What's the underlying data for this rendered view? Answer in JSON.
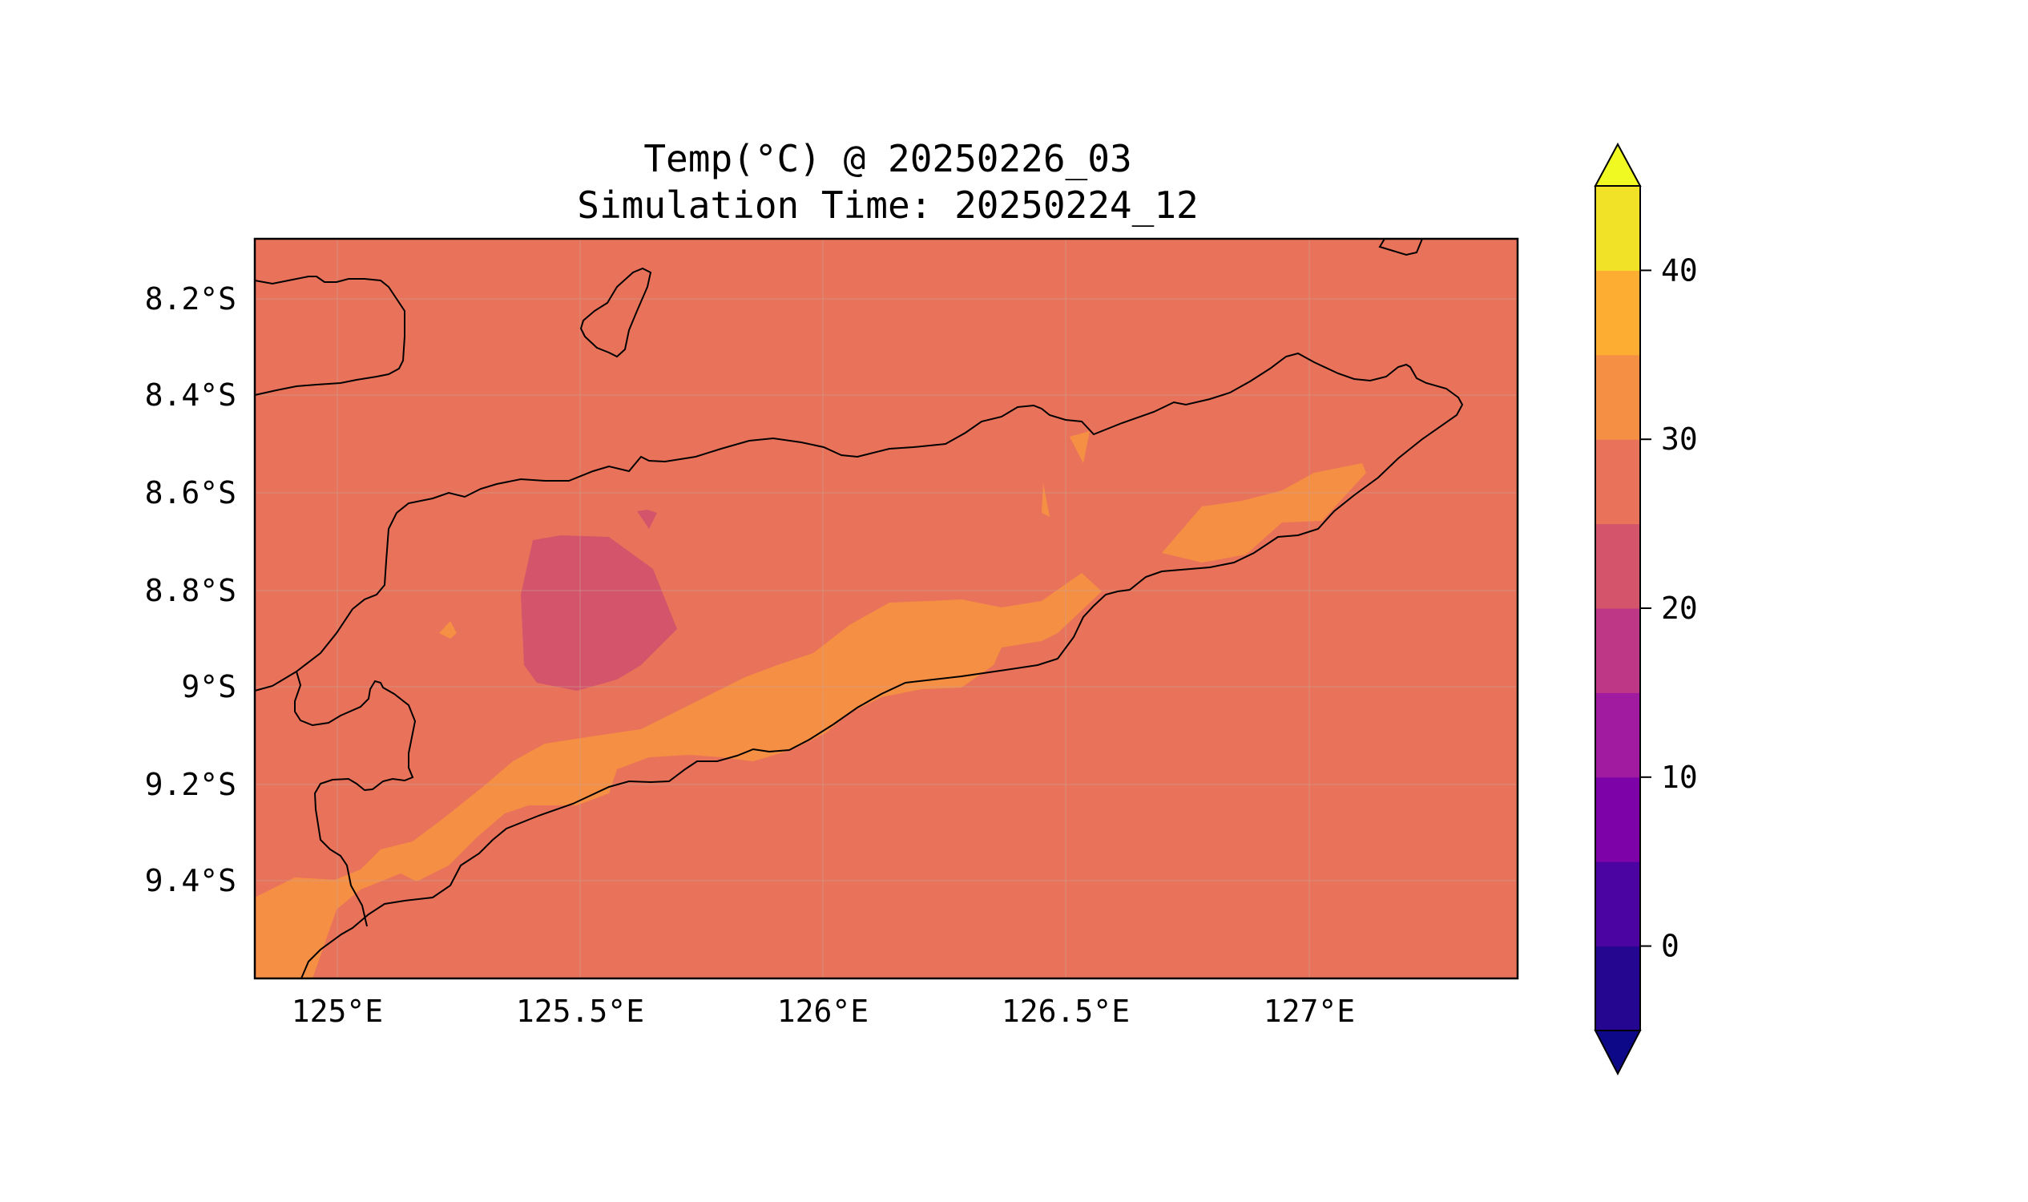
{
  "title_line1": "Temp(°C) @ 20250226_03",
  "title_line2": "Simulation Time: 20250224_12",
  "map": {
    "lon_range": [
      124.83,
      127.42
    ],
    "lat_range": [
      -9.6,
      -8.08
    ],
    "lon_ticks": [
      "125°E",
      "125.5°E",
      "126°E",
      "126.5°E",
      "127°E"
    ],
    "lat_ticks": [
      "8.2°S",
      "8.4°S",
      "8.6°S",
      "8.8°S",
      "9°S",
      "9.2°S",
      "9.4°S"
    ],
    "background_fill_color": "#e9735a",
    "zones": [
      {
        "range": "30-35",
        "color": "#f58f44"
      },
      {
        "range": "20-25",
        "color": "#d4546b"
      }
    ]
  },
  "colorbar": {
    "min": -5,
    "max": 45,
    "step": 5,
    "extend": "both",
    "tick_labels": [
      "0",
      "10",
      "20",
      "30",
      "40"
    ],
    "under_color": "#0d0887",
    "over_color": "#f0f921",
    "colors": [
      "#240691",
      "#4b03a1",
      "#7d03a8",
      "#a01ba0",
      "#bd3786",
      "#d4546b",
      "#e9735a",
      "#f58f44",
      "#fdae32",
      "#f1e227"
    ]
  }
}
